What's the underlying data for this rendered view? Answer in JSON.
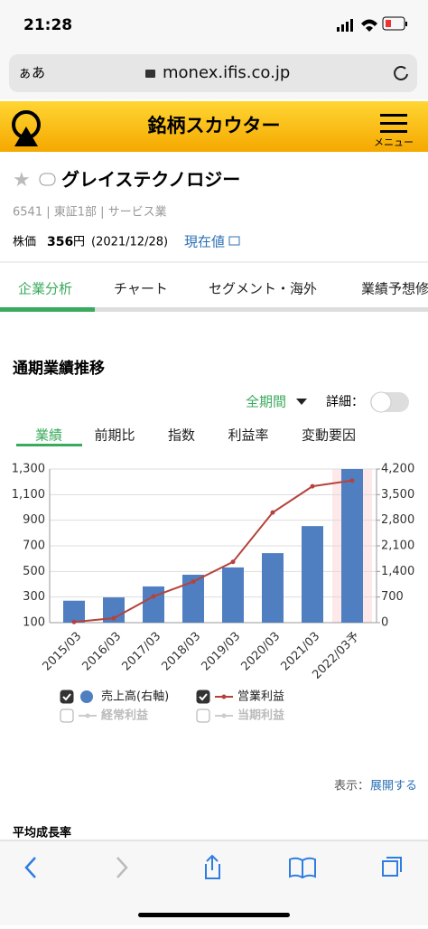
{
  "status_bar": {
    "time": "21:28"
  },
  "browser": {
    "text_size": "ぁあ",
    "url": "monex.ifis.co.jp"
  },
  "header": {
    "title": "銘柄スカウター",
    "menu": "メニュー"
  },
  "stock": {
    "name": "グレイステクノロジー",
    "info": "6541 | 東証1部 | サービス業",
    "price_label": "株価",
    "price": "356",
    "price_unit": "円",
    "date": "(2021/12/28)",
    "current_link": "現在値"
  },
  "tabs": [
    "企業分析",
    "チャート",
    "セグメント・海外",
    "業績予想修"
  ],
  "section": {
    "title": "通期業績推移",
    "period": "全期間",
    "detail": "詳細："
  },
  "sub_tabs": [
    "業績",
    "前期比",
    "指数",
    "利益率",
    "変動要因"
  ],
  "chart_data": {
    "type": "bar_line",
    "categories": [
      "2015/03",
      "2016/03",
      "2017/03",
      "2018/03",
      "2019/03",
      "2020/03",
      "2021/03",
      "2022/03予"
    ],
    "series": [
      {
        "name": "売上高(右軸)",
        "type": "bar",
        "axis": "y2",
        "color": "#4f7fc0",
        "values": [
          600,
          690,
          990,
          1310,
          1510,
          1900,
          2640,
          4200
        ]
      },
      {
        "name": "営業利益",
        "type": "line",
        "color": "#b5433d",
        "values": [
          105,
          135,
          305,
          420,
          575,
          960,
          1165,
          1210
        ]
      }
    ],
    "ylim": [
      100,
      1300
    ],
    "yticks": [
      100,
      300,
      500,
      700,
      900,
      {
        "value": 1100,
        "label": "1,100"
      },
      {
        "value": 1300,
        "label": "1,300"
      }
    ],
    "y2lim": [
      0,
      4200
    ],
    "y2ticks": [
      0,
      700,
      {
        "value": 1400,
        "label": "1,400"
      },
      {
        "value": 2100,
        "label": "2,100"
      },
      {
        "value": 2800,
        "label": "2,800"
      },
      {
        "value": 3500,
        "label": "3,500"
      },
      {
        "value": 4200,
        "label": "4,200"
      }
    ],
    "grid": true,
    "hidden_series": [
      {
        "name": "経常利益"
      },
      {
        "name": "当期利益"
      }
    ]
  },
  "footer": {
    "display": "表示：",
    "expand": "展開する",
    "growth": "平均成長率"
  }
}
